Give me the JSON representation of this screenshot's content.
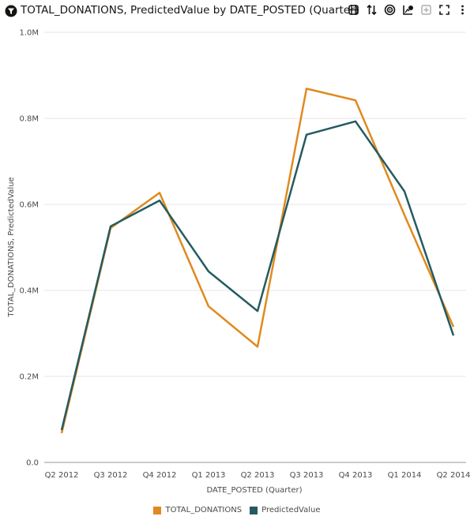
{
  "header": {
    "title": "TOTAL_DONATIONS, PredictedValue by DATE_POSTED (Quarter)",
    "title_icon": "filter-funnel-icon",
    "toolbar": [
      {
        "name": "chart-settings-icon",
        "disabled": false
      },
      {
        "name": "sort-icon",
        "disabled": false
      },
      {
        "name": "target-icon",
        "disabled": false
      },
      {
        "name": "explore-chart-icon",
        "disabled": false
      },
      {
        "name": "add-icon",
        "disabled": true
      },
      {
        "name": "expand-icon",
        "disabled": false
      },
      {
        "name": "more-options-icon",
        "disabled": false
      }
    ]
  },
  "chart_data": {
    "type": "line",
    "title": "TOTAL_DONATIONS, PredictedValue by DATE_POSTED (Quarter)",
    "xlabel": "DATE_POSTED (Quarter)",
    "ylabel": "TOTAL_DONATIONS, PredictedValue",
    "categories": [
      "Q2 2012",
      "Q3 2012",
      "Q4 2012",
      "Q1 2013",
      "Q2 2013",
      "Q3 2013",
      "Q4 2013",
      "Q1 2014",
      "Q2 2014"
    ],
    "ylim": [
      0,
      1000000
    ],
    "yticks": [
      0,
      200000,
      400000,
      600000,
      800000,
      1000000
    ],
    "ytick_labels": [
      "0.0",
      "0.2M",
      "0.4M",
      "0.6M",
      "0.8M",
      "1.0M"
    ],
    "grid": true,
    "legend_position": "bottom",
    "series": [
      {
        "name": "TOTAL_DONATIONS",
        "color": "#e08a1e",
        "values": [
          68000,
          545000,
          627000,
          363000,
          269000,
          869000,
          842000,
          575000,
          315000
        ]
      },
      {
        "name": "PredictedValue",
        "color": "#245b61",
        "values": [
          75000,
          549000,
          609000,
          444000,
          352000,
          762000,
          793000,
          630000,
          295000
        ]
      }
    ]
  }
}
